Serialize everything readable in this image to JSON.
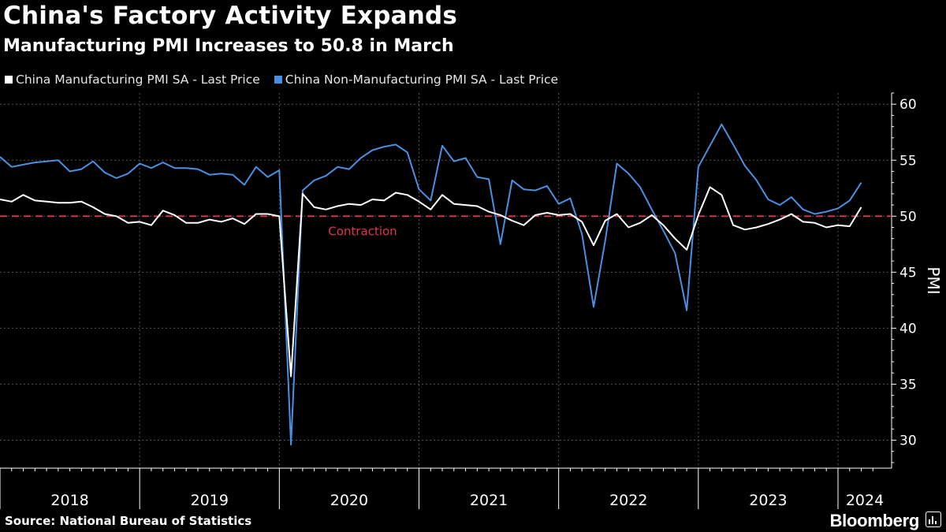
{
  "title": "China's Factory Activity Expands",
  "subtitle": "Manufacturing PMI Increases to 50.8 in March",
  "source": "Source: National Bureau of Statistics",
  "brand": "Bloomberg",
  "colors": {
    "background": "#000000",
    "manufacturing": "#ffffff",
    "non_manufacturing": "#4a90e2",
    "threshold": "#e0344f",
    "grid": "#555555"
  },
  "chart_data": {
    "type": "line",
    "title": "China's Factory Activity Expands",
    "subtitle": "Manufacturing PMI Increases to 50.8 in March",
    "ylabel": "PMI",
    "xlabel": "",
    "ylim": [
      27.5,
      61
    ],
    "yticks": [
      30,
      35,
      40,
      45,
      50,
      55,
      60
    ],
    "y_axis_side": "right",
    "grid": true,
    "legend_placement": "top-left",
    "x_start": "2018-01",
    "x_end": "2024-03",
    "year_labels": [
      "2018",
      "2019",
      "2020",
      "2021",
      "2022",
      "2023",
      "2024"
    ],
    "reference_line": {
      "value": 50,
      "label": "Contraction"
    },
    "series": [
      {
        "name": "China Manufacturing PMI SA - Last Price",
        "color": "#ffffff",
        "values": [
          51.5,
          51.3,
          51.9,
          51.4,
          51.3,
          51.2,
          51.2,
          51.3,
          50.8,
          50.2,
          50.0,
          49.4,
          49.5,
          49.2,
          50.5,
          50.1,
          49.4,
          49.4,
          49.7,
          49.5,
          49.8,
          49.3,
          50.2,
          50.2,
          50.0,
          35.7,
          52.0,
          50.8,
          50.6,
          50.9,
          51.1,
          51.0,
          51.5,
          51.4,
          52.1,
          51.9,
          51.3,
          50.6,
          51.9,
          51.1,
          51.0,
          50.9,
          50.4,
          50.1,
          49.6,
          49.2,
          50.1,
          50.3,
          50.1,
          50.2,
          49.5,
          47.4,
          49.6,
          50.2,
          49.0,
          49.4,
          50.1,
          49.2,
          48.0,
          47.0,
          50.1,
          52.6,
          51.9,
          49.2,
          48.8,
          49.0,
          49.3,
          49.7,
          50.2,
          49.5,
          49.4,
          49.0,
          49.2,
          49.1,
          50.8
        ]
      },
      {
        "name": "China Non-Manufacturing PMI SA - Last Price",
        "color": "#4a90e2",
        "values": [
          55.3,
          54.4,
          54.6,
          54.8,
          54.9,
          55.0,
          54.0,
          54.2,
          54.9,
          53.9,
          53.4,
          53.8,
          54.7,
          54.3,
          54.8,
          54.3,
          54.3,
          54.2,
          53.7,
          53.8,
          53.7,
          52.8,
          54.4,
          53.5,
          54.1,
          29.6,
          52.3,
          53.2,
          53.6,
          54.4,
          54.2,
          55.2,
          55.9,
          56.2,
          56.4,
          55.7,
          52.4,
          51.4,
          56.3,
          54.9,
          55.2,
          53.5,
          53.3,
          47.5,
          53.2,
          52.4,
          52.3,
          52.7,
          51.1,
          51.6,
          48.4,
          41.9,
          47.8,
          54.7,
          53.8,
          52.6,
          50.6,
          48.7,
          46.7,
          41.6,
          54.4,
          56.3,
          58.2,
          56.4,
          54.5,
          53.2,
          51.5,
          51.0,
          51.7,
          50.6,
          50.2,
          50.4,
          50.7,
          51.4,
          53.0
        ]
      }
    ]
  }
}
